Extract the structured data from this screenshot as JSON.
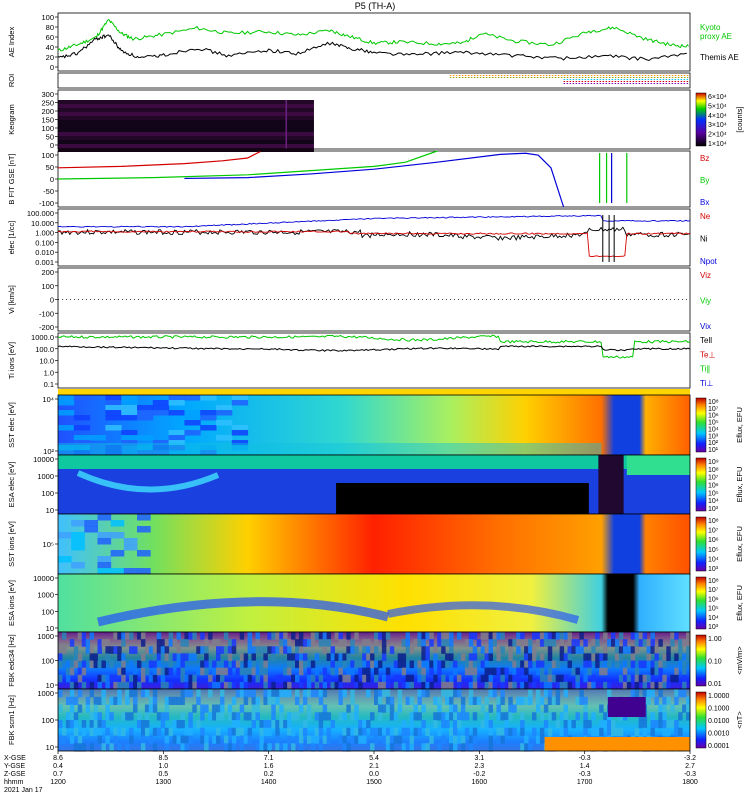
{
  "title": "P5 (TH-A)",
  "colors": {
    "red": "#d40000",
    "green": "#00c800",
    "blue": "#0000d8",
    "black": "#000000",
    "purple": "#7000a0"
  },
  "chart_data": [
    {
      "type": "line",
      "panel": "ae",
      "ylabel": "AE Index",
      "yticks": [
        "100",
        "80",
        "60",
        "40",
        "20",
        "0"
      ],
      "ylim": [
        0,
        100
      ],
      "legend": [
        "Kyoto",
        "proxy AE",
        "Themis AE"
      ],
      "series": [
        {
          "name": "Kyoto proxy AE",
          "color": "#00c800",
          "x": [
            0,
            0.03,
            0.06,
            0.08,
            0.1,
            0.12,
            0.16,
            0.22,
            0.27,
            0.33,
            0.38,
            0.43,
            0.46,
            0.5,
            0.54,
            0.6,
            0.64,
            0.67,
            0.72,
            0.78,
            0.84,
            0.88,
            0.93,
            0.97,
            1.0
          ],
          "y": [
            35,
            45,
            58,
            88,
            65,
            55,
            62,
            74,
            65,
            68,
            62,
            70,
            60,
            48,
            50,
            47,
            48,
            65,
            52,
            45,
            68,
            75,
            55,
            45,
            42
          ]
        },
        {
          "name": "Themis AE",
          "color": "#000000",
          "x": [
            0,
            0.03,
            0.06,
            0.08,
            0.1,
            0.13,
            0.17,
            0.22,
            0.27,
            0.33,
            0.38,
            0.43,
            0.46,
            0.5,
            0.56,
            0.62,
            0.68,
            0.74,
            0.8,
            0.87,
            0.93,
            1.0
          ],
          "y": [
            22,
            30,
            55,
            62,
            35,
            22,
            28,
            40,
            26,
            36,
            30,
            48,
            40,
            32,
            28,
            32,
            30,
            25,
            22,
            26,
            20,
            30
          ]
        }
      ]
    },
    {
      "type": "line",
      "panel": "roi",
      "ylabel": "ROI",
      "series": []
    },
    {
      "type": "heatmap",
      "panel": "keogram",
      "ylabel": "Keogram",
      "yticks": [
        "300",
        "250",
        "200",
        "150",
        "100",
        "50",
        "0"
      ],
      "colorbar": {
        "label": "[counts]",
        "ticks": [
          "6×10⁴",
          "5×10⁴",
          "4×10⁴",
          "3×10⁴",
          "2×10⁴",
          "1×10⁴"
        ]
      }
    },
    {
      "type": "line",
      "panel": "bfield",
      "ylabel": "B FIT GSE [nT]",
      "yticks": [
        "100",
        "50",
        "0",
        "-50",
        "-100"
      ],
      "ylim": [
        -100,
        100
      ],
      "legend": [
        "Bz",
        "By",
        "Bx"
      ],
      "series": [
        {
          "name": "Bz",
          "color": "#d40000",
          "x": [
            0,
            0.1,
            0.2,
            0.26,
            0.3,
            0.32
          ],
          "y": [
            40,
            45,
            55,
            65,
            75,
            98
          ]
        },
        {
          "name": "By",
          "color": "#00c800",
          "x": [
            0,
            0.15,
            0.3,
            0.4,
            0.5,
            0.55,
            0.6
          ],
          "y": [
            0,
            5,
            15,
            30,
            45,
            60,
            100
          ]
        },
        {
          "name": "Bx",
          "color": "#0000d8",
          "x": [
            0.2,
            0.3,
            0.4,
            0.5,
            0.6,
            0.7,
            0.74,
            0.76,
            0.78,
            0.8
          ],
          "y": [
            2,
            5,
            18,
            35,
            60,
            88,
            92,
            85,
            40,
            -100
          ]
        }
      ]
    },
    {
      "type": "line",
      "panel": "density",
      "ylabel": "elec [1/cc]",
      "yticks": [
        "100.000",
        "10.000",
        "1.000",
        "0.100",
        "0.010",
        "0.001"
      ],
      "legend": [
        "Ne",
        "Ni",
        "Npot"
      ]
    },
    {
      "type": "line",
      "panel": "velocity",
      "ylabel": "Vi [km/s]",
      "yticks": [
        "200",
        "100",
        "0",
        "-100",
        "-200"
      ],
      "legend": [
        "Viz",
        "Viy",
        "Vix"
      ]
    },
    {
      "type": "line",
      "panel": "temperature",
      "ylabel": "Ti ions [eV]",
      "yticks": [
        "1000.0",
        "100.0",
        "10.0",
        "1.0",
        "0.1"
      ],
      "legend": [
        "Tell",
        "Te⊥",
        "Ti∥",
        "Ti⊥"
      ]
    },
    {
      "type": "heatmap",
      "panel": "sst_elec",
      "ylabel": "SST elec [eV]",
      "yticks": [
        "10⁴",
        "10²"
      ],
      "colorbar": {
        "label": "Eflux, EFU",
        "ticks": [
          "10⁸",
          "10⁷",
          "10⁶",
          "10⁵",
          "10⁴",
          "10³",
          "10²",
          "10¹"
        ]
      }
    },
    {
      "type": "heatmap",
      "panel": "esa_elec",
      "ylabel": "ESA elec [eV]",
      "yticks": [
        "10000",
        "1000",
        "100",
        "10"
      ],
      "colorbar": {
        "label": "Eflux, EFU",
        "ticks": [
          "10⁹",
          "10⁸",
          "10⁷",
          "10⁶",
          "10⁵",
          "10⁴",
          "10³"
        ]
      }
    },
    {
      "type": "heatmap",
      "panel": "sst_ions",
      "ylabel": "SST ions [eV]",
      "yticks": [
        "10⁵"
      ],
      "colorbar": {
        "label": "Eflux, EFU",
        "ticks": [
          "10⁸",
          "10⁷",
          "10⁶",
          "10⁵",
          "10⁴",
          "10³"
        ]
      }
    },
    {
      "type": "heatmap",
      "panel": "esa_ions",
      "ylabel": "ESA ions [eV]",
      "yticks": [
        "10000",
        "1000",
        "100",
        "10"
      ],
      "colorbar": {
        "label": "Eflux, EFU",
        "ticks": [
          "10⁸",
          "10⁷",
          "10⁶",
          "10⁵",
          "10⁴",
          "10³"
        ]
      }
    },
    {
      "type": "heatmap",
      "panel": "fbk_edc",
      "ylabel": "FBK edc34 [Hz]",
      "yticks": [
        "1000",
        "100",
        "10"
      ],
      "colorbar": {
        "label": "<mV/m>",
        "ticks": [
          "1.00",
          "0.10",
          "0.01"
        ]
      }
    },
    {
      "type": "heatmap",
      "panel": "fbk_scm",
      "ylabel": "FBK scm1 [Hz]",
      "yticks": [
        "1000",
        "100",
        "10"
      ],
      "colorbar": {
        "label": "<nT>",
        "ticks": [
          "1.0000",
          "0.1000",
          "0.0100",
          "0.0010",
          "0.0001"
        ]
      }
    }
  ],
  "xaxis": {
    "row_labels": [
      "X-GSE",
      "Y-GSE",
      "Z-GSE",
      "hhmm",
      "2021 Jan 17"
    ],
    "columns": [
      [
        "8.6",
        "0.4",
        "0.7",
        "1200"
      ],
      [
        "8.5",
        "1.0",
        "0.5",
        "1300"
      ],
      [
        "7.1",
        "1.6",
        "0.2",
        "1400"
      ],
      [
        "5.4",
        "2.1",
        "0.0",
        "1500"
      ],
      [
        "3.1",
        "2.3",
        "-0.2",
        "1600"
      ],
      [
        "-0.3",
        "1.4",
        "-0.3",
        "1700"
      ],
      [
        "-3.2",
        "2.7",
        "-0.3",
        "1800"
      ]
    ]
  }
}
